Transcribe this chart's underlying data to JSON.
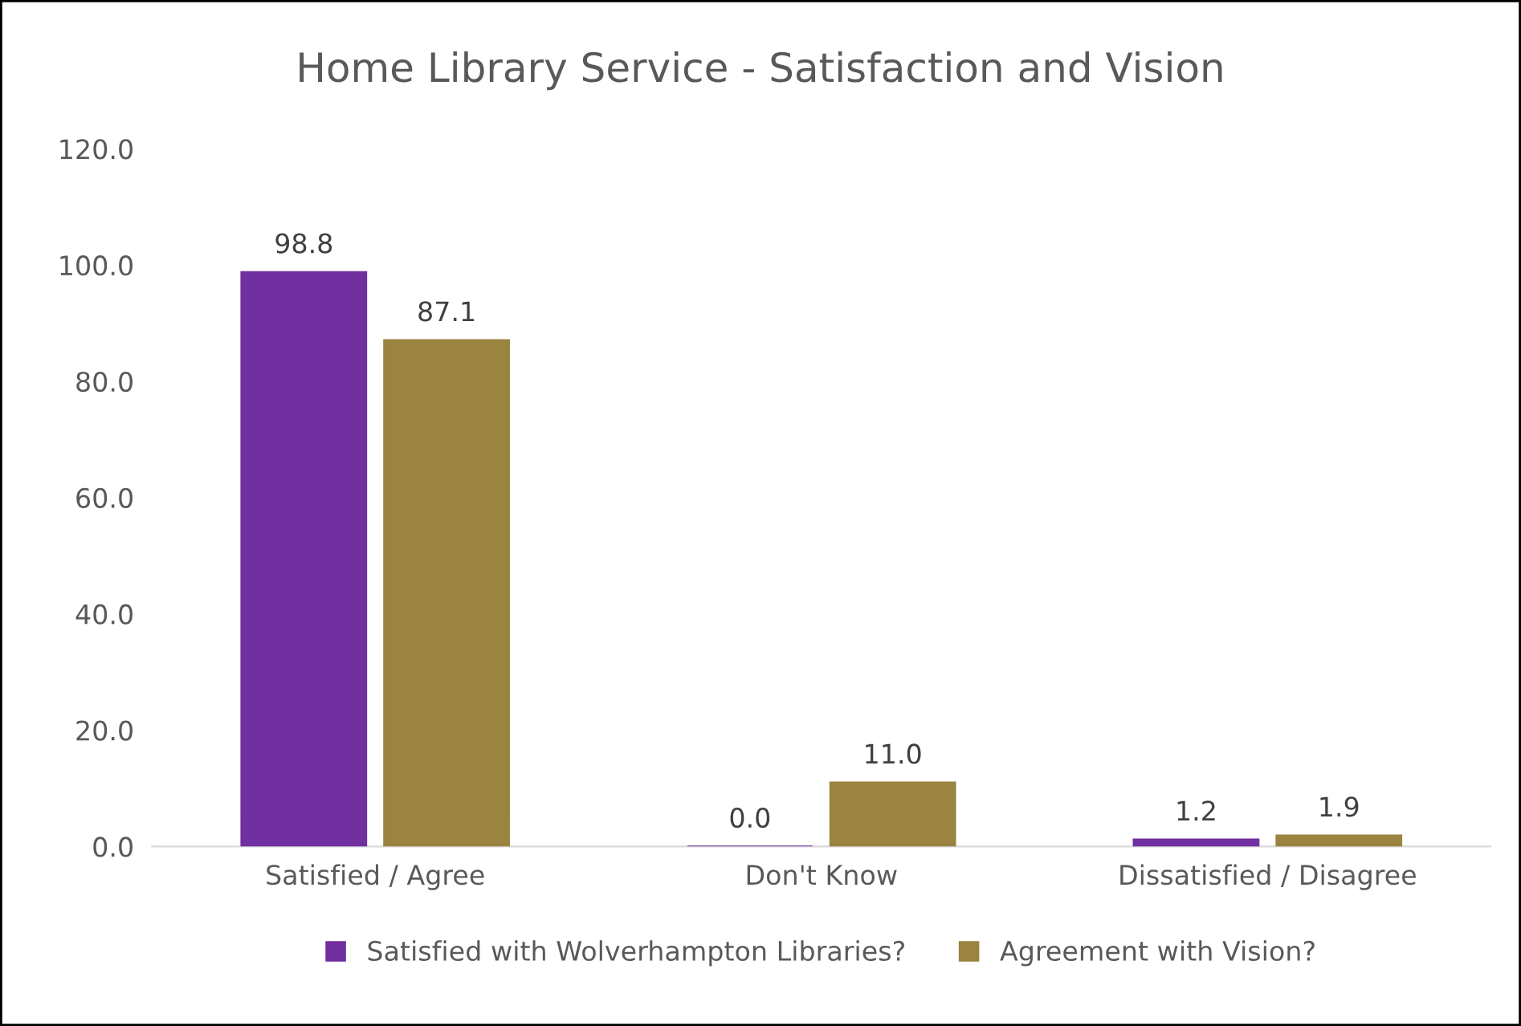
{
  "chart_data": {
    "type": "bar",
    "title": "Home Library Service - Satisfaction and Vision",
    "categories": [
      "Satisfied / Agree",
      "Don't Know",
      "Dissatisfied / Disagree"
    ],
    "series": [
      {
        "name": "Satisfied with Wolverhampton Libraries?",
        "color": "#7030a0",
        "values": [
          98.8,
          0,
          1.2
        ],
        "value_labels": [
          "98.8",
          "0.0",
          "1.2"
        ]
      },
      {
        "name": "Agreement with Vision?",
        "color": "#9a8440",
        "values": [
          87.1,
          11.0,
          1.9
        ],
        "value_labels": [
          "87.1",
          "11.0",
          "1.9"
        ]
      }
    ],
    "ylim": [
      0,
      120
    ],
    "yticks": [
      {
        "value": 0,
        "label": "0.0"
      },
      {
        "value": 20,
        "label": "20.0"
      },
      {
        "value": 40,
        "label": "40.0"
      },
      {
        "value": 60,
        "label": "60.0"
      },
      {
        "value": 80,
        "label": "80.0"
      },
      {
        "value": 100,
        "label": "100.0"
      },
      {
        "value": 120,
        "label": "120.0"
      }
    ],
    "grid": false,
    "legend": "bottom"
  }
}
